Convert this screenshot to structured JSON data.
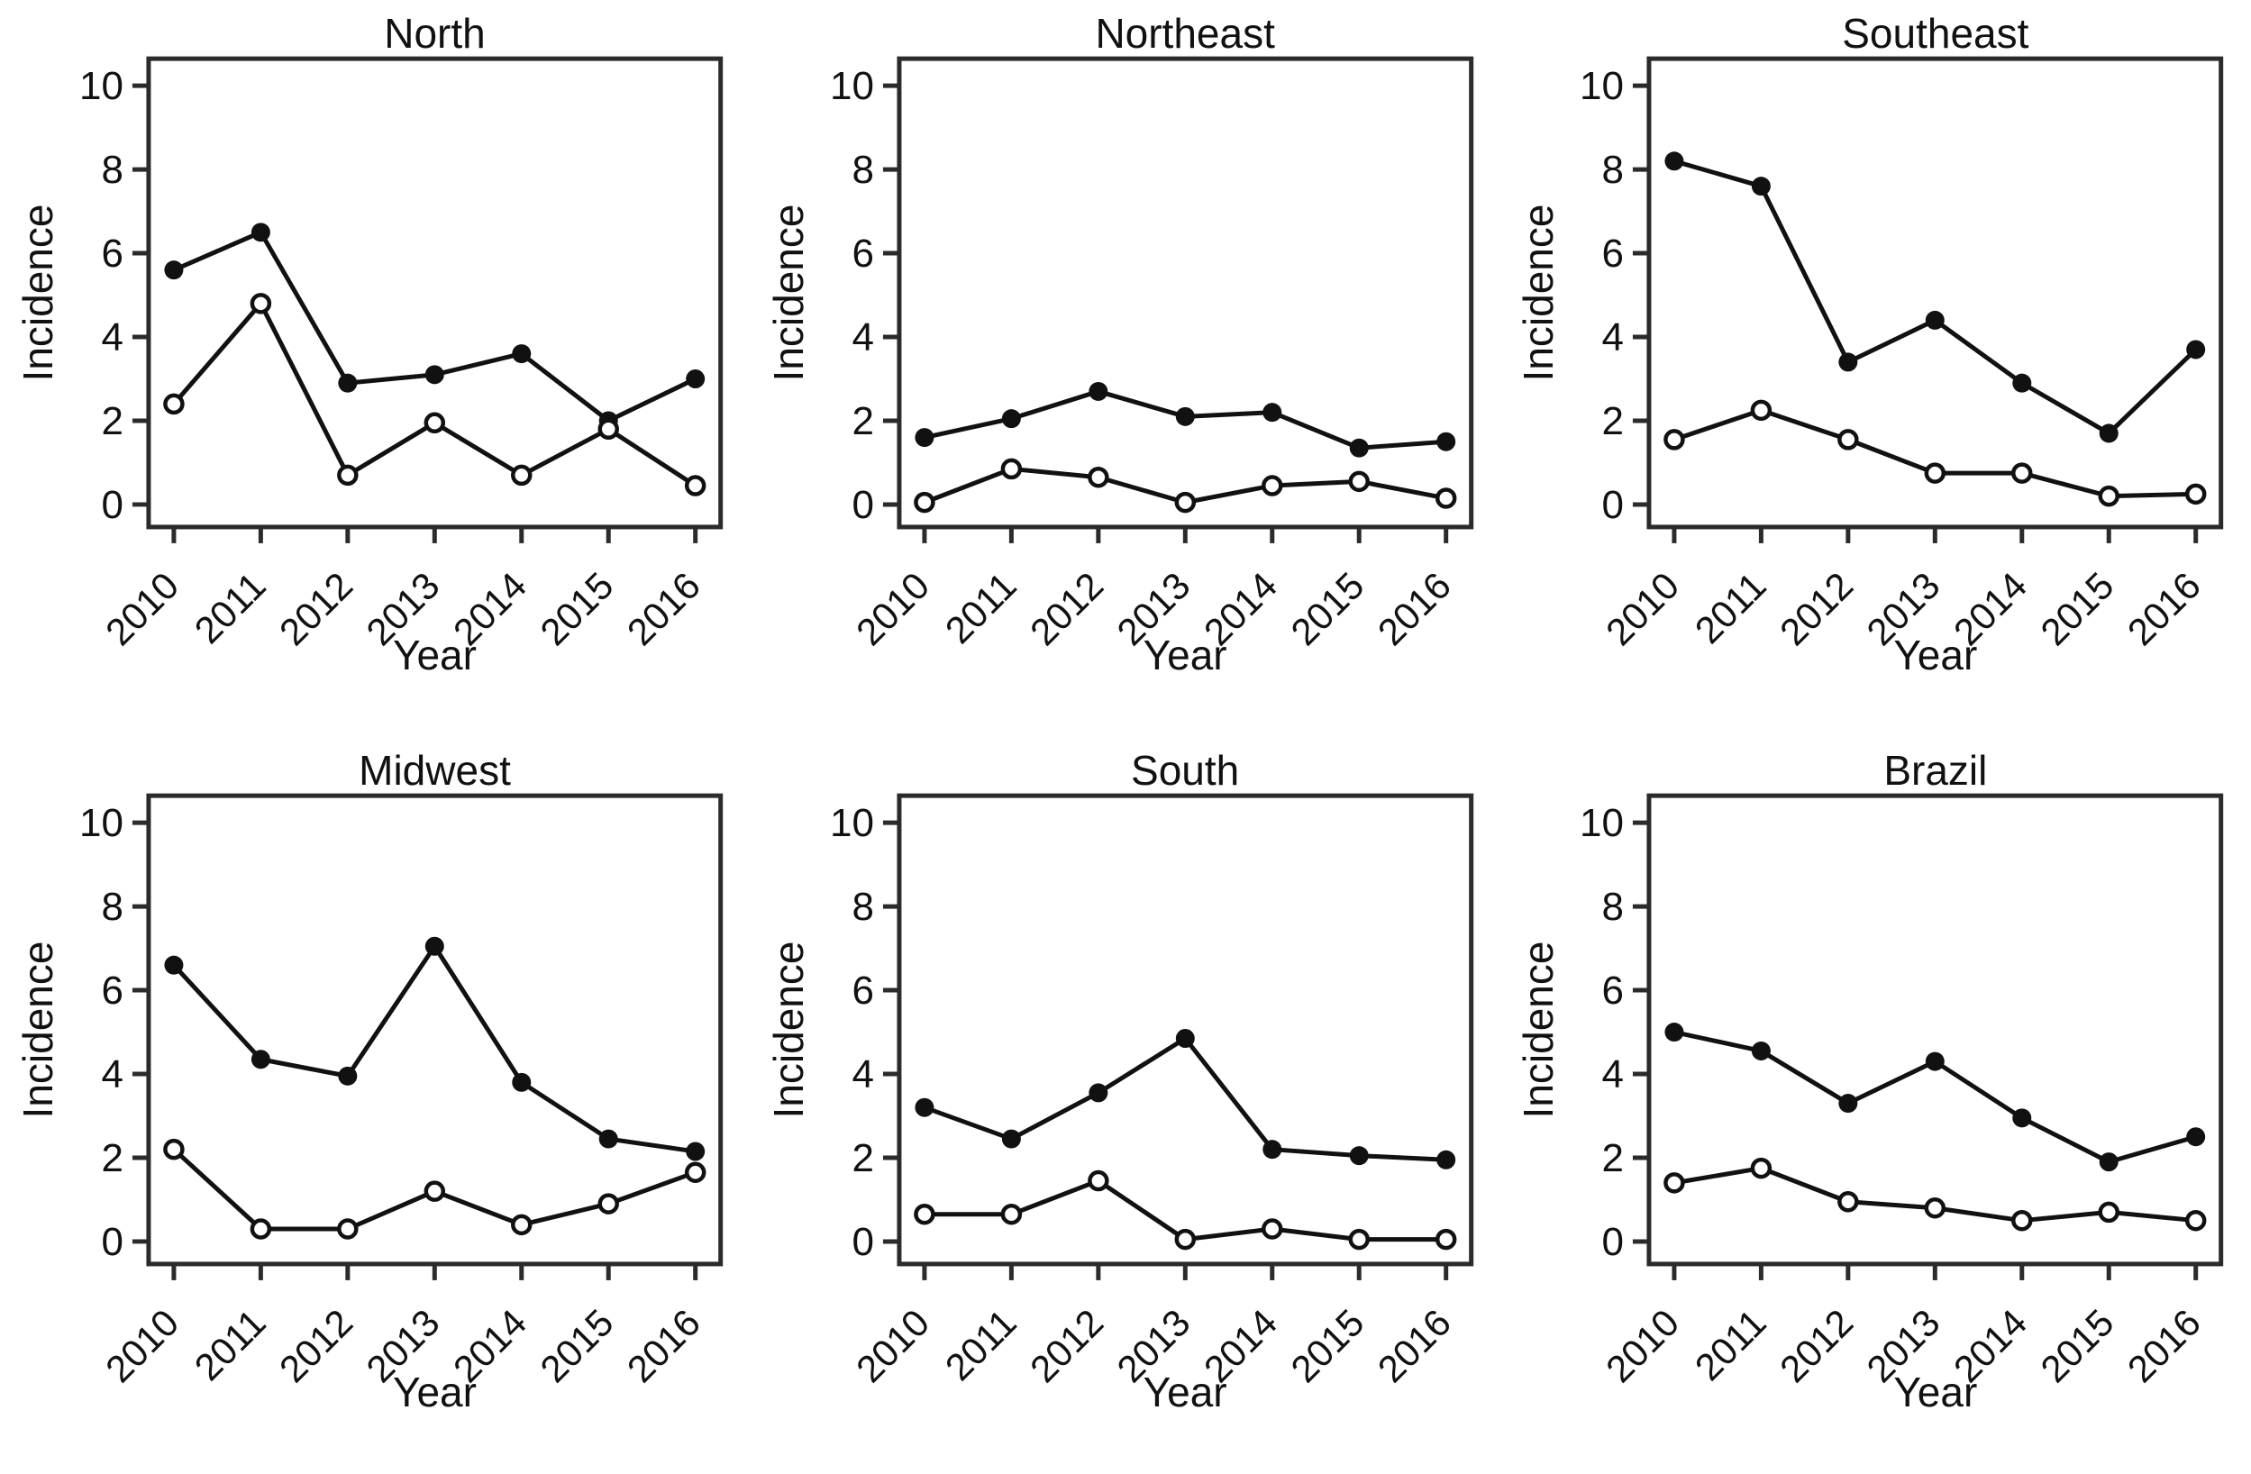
{
  "figure": {
    "layout": "2 rows x 3 columns of small-multiple line charts",
    "background": "#ffffff"
  },
  "colors": {
    "series_line": "#111111",
    "filled_marker_fill": "#111111",
    "open_marker_fill": "#ffffff",
    "box_border": "#2b2b2b",
    "text": "#111111"
  },
  "chart_data": [
    {
      "type": "line",
      "title": "North",
      "xlabel": "Year",
      "ylabel": "Incidence",
      "x": [
        2010,
        2011,
        2012,
        2013,
        2014,
        2015,
        2016
      ],
      "yticks": [
        0,
        2,
        4,
        6,
        8,
        10
      ],
      "ylim": [
        0,
        10.8
      ],
      "grid": false,
      "legend": "none",
      "series": [
        {
          "name": "filled-circle",
          "marker": "filled-circle",
          "values": [
            5.6,
            6.5,
            2.9,
            3.1,
            3.6,
            2.0,
            3.0
          ]
        },
        {
          "name": "open-circle",
          "marker": "open-circle",
          "values": [
            2.4,
            4.8,
            0.7,
            1.95,
            0.7,
            1.8,
            0.45
          ]
        }
      ]
    },
    {
      "type": "line",
      "title": "Northeast",
      "xlabel": "Year",
      "ylabel": "Incidence",
      "x": [
        2010,
        2011,
        2012,
        2013,
        2014,
        2015,
        2016
      ],
      "yticks": [
        0,
        2,
        4,
        6,
        8,
        10
      ],
      "ylim": [
        0,
        10.8
      ],
      "grid": false,
      "legend": "none",
      "series": [
        {
          "name": "filled-circle",
          "marker": "filled-circle",
          "values": [
            1.6,
            2.05,
            2.7,
            2.1,
            2.2,
            1.35,
            1.5
          ]
        },
        {
          "name": "open-circle",
          "marker": "open-circle",
          "values": [
            0.05,
            0.85,
            0.65,
            0.05,
            0.45,
            0.55,
            0.15
          ]
        }
      ]
    },
    {
      "type": "line",
      "title": "Southeast",
      "xlabel": "Year",
      "ylabel": "Incidence",
      "x": [
        2010,
        2011,
        2012,
        2013,
        2014,
        2015,
        2016
      ],
      "yticks": [
        0,
        2,
        4,
        6,
        8,
        10
      ],
      "ylim": [
        0,
        10.8
      ],
      "grid": false,
      "legend": "none",
      "series": [
        {
          "name": "filled-circle",
          "marker": "filled-circle",
          "values": [
            8.2,
            7.6,
            3.4,
            4.4,
            2.9,
            1.7,
            3.7
          ]
        },
        {
          "name": "open-circle",
          "marker": "open-circle",
          "values": [
            1.55,
            2.25,
            1.55,
            0.75,
            0.75,
            0.2,
            0.25
          ]
        }
      ]
    },
    {
      "type": "line",
      "title": "Midwest",
      "xlabel": "Year",
      "ylabel": "Incidence",
      "x": [
        2010,
        2011,
        2012,
        2013,
        2014,
        2015,
        2016
      ],
      "yticks": [
        0,
        2,
        4,
        6,
        8,
        10
      ],
      "ylim": [
        0,
        10.8
      ],
      "grid": false,
      "legend": "none",
      "series": [
        {
          "name": "filled-circle",
          "marker": "filled-circle",
          "values": [
            6.6,
            4.35,
            3.95,
            7.05,
            3.8,
            2.45,
            2.15
          ]
        },
        {
          "name": "open-circle",
          "marker": "open-circle",
          "values": [
            2.2,
            0.3,
            0.3,
            1.2,
            0.4,
            0.9,
            1.65
          ]
        }
      ]
    },
    {
      "type": "line",
      "title": "South",
      "xlabel": "Year",
      "ylabel": "Incidence",
      "x": [
        2010,
        2011,
        2012,
        2013,
        2014,
        2015,
        2016
      ],
      "yticks": [
        0,
        2,
        4,
        6,
        8,
        10
      ],
      "ylim": [
        0,
        10.8
      ],
      "grid": false,
      "legend": "none",
      "series": [
        {
          "name": "filled-circle",
          "marker": "filled-circle",
          "values": [
            3.2,
            2.45,
            3.55,
            4.85,
            2.2,
            2.05,
            1.95
          ]
        },
        {
          "name": "open-circle",
          "marker": "open-circle",
          "values": [
            0.65,
            0.65,
            1.45,
            0.05,
            0.3,
            0.05,
            0.05
          ]
        }
      ]
    },
    {
      "type": "line",
      "title": "Brazil",
      "xlabel": "Year",
      "ylabel": "Incidence",
      "x": [
        2010,
        2011,
        2012,
        2013,
        2014,
        2015,
        2016
      ],
      "yticks": [
        0,
        2,
        4,
        6,
        8,
        10
      ],
      "ylim": [
        0,
        10.8
      ],
      "grid": false,
      "legend": "none",
      "series": [
        {
          "name": "filled-circle",
          "marker": "filled-circle",
          "values": [
            5.0,
            4.55,
            3.3,
            4.3,
            2.95,
            1.9,
            2.5
          ]
        },
        {
          "name": "open-circle",
          "marker": "open-circle",
          "values": [
            1.4,
            1.75,
            0.95,
            0.8,
            0.5,
            0.7,
            0.5
          ]
        }
      ]
    }
  ]
}
